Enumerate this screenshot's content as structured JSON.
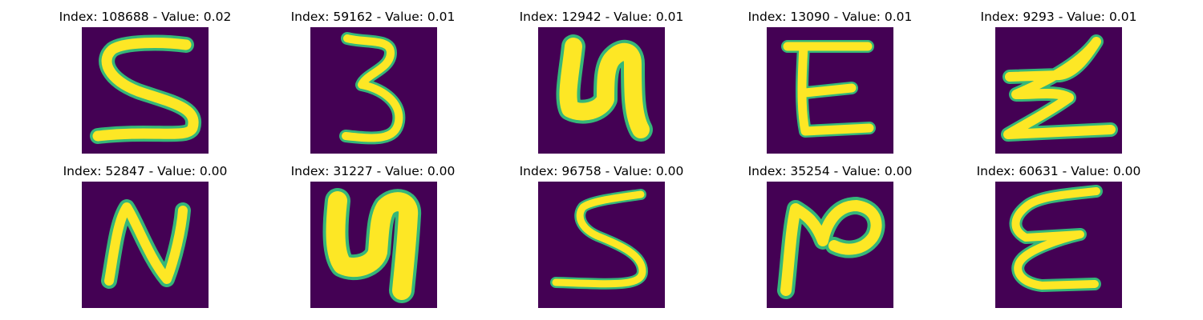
{
  "panels": [
    {
      "label": "Index: 108688 - Value: 0.02",
      "glyph": "S"
    },
    {
      "label": "Index: 59162 - Value: 0.01",
      "glyph": "3"
    },
    {
      "label": "Index: 12942 - Value: 0.01",
      "glyph": "M (rotated)"
    },
    {
      "label": "Index: 13090 - Value: 0.01",
      "glyph": "E"
    },
    {
      "label": "Index: 9293 - Value: 0.01",
      "glyph": "Z-like"
    },
    {
      "label": "Index: 52847 - Value: 0.00",
      "glyph": "N"
    },
    {
      "label": "Index: 31227 - Value: 0.00",
      "glyph": "M (rotated)"
    },
    {
      "label": "Index: 96758 - Value: 0.00",
      "glyph": "S"
    },
    {
      "label": "Index: 35254 - Value: 0.00",
      "glyph": "N (rotated)"
    },
    {
      "label": "Index: 60631 - Value: 0.00",
      "glyph": "E-like"
    }
  ],
  "colors": {
    "background": "#440154",
    "stroke_core": "#fde725",
    "stroke_edge": "#35b779"
  }
}
